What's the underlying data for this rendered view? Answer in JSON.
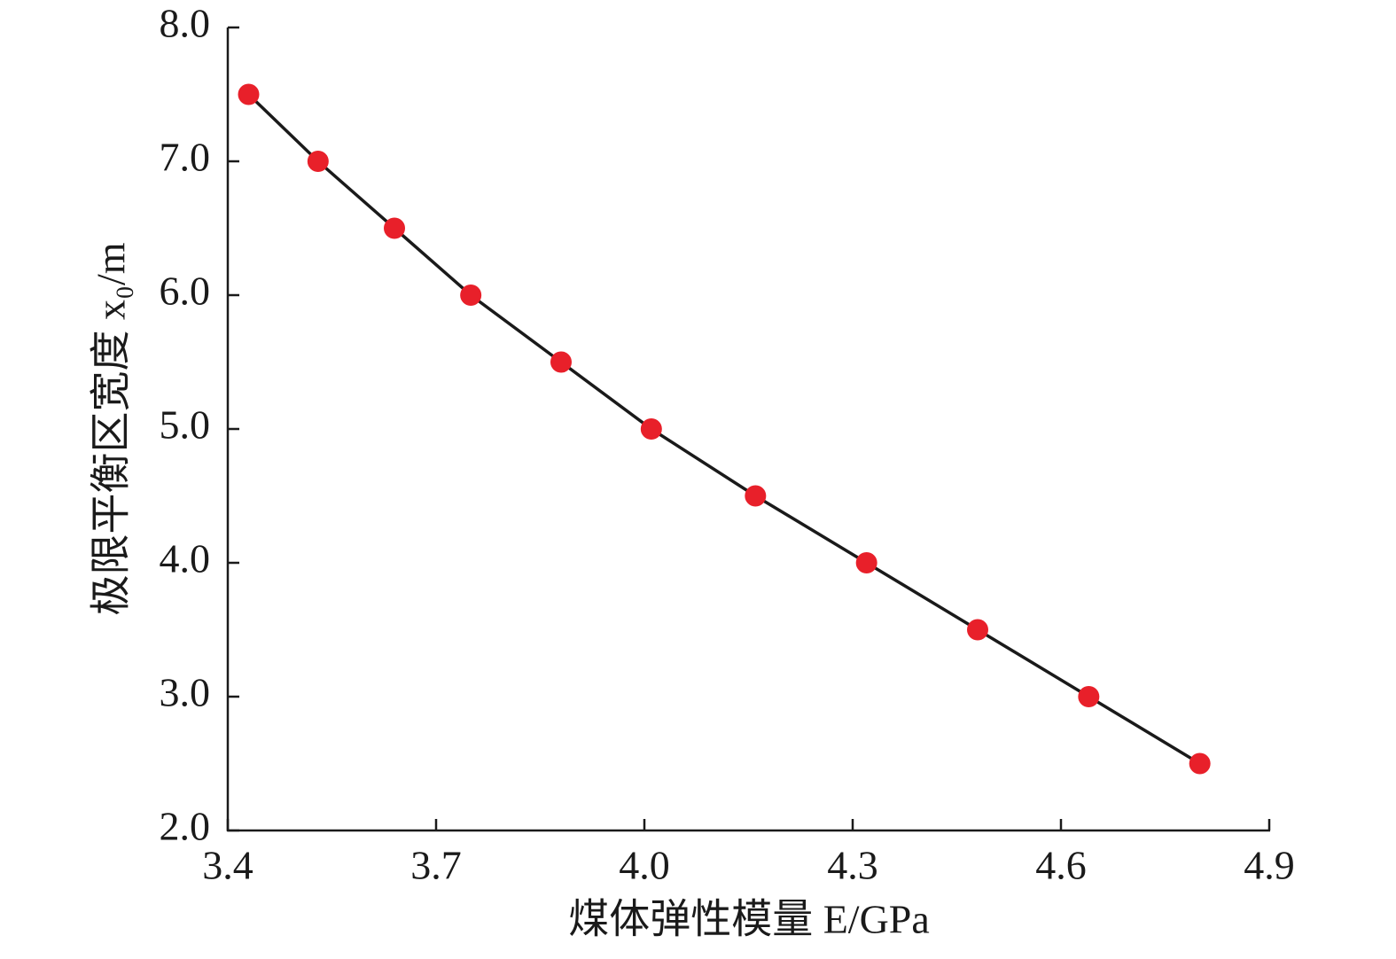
{
  "chart_data": {
    "type": "line",
    "x_label": "煤体弹性模量 E/GPa",
    "y_label": "极限平衡区宽度 x₀/m",
    "x": [
      3.43,
      3.53,
      3.64,
      3.75,
      3.88,
      4.01,
      4.16,
      4.32,
      4.48,
      4.64,
      4.8
    ],
    "series": [
      {
        "color": "#e8202a",
        "line_color": "#1a1a1a",
        "values": [
          7.5,
          7.0,
          6.5,
          6.0,
          5.5,
          5.0,
          4.5,
          4.0,
          3.5,
          3.0,
          2.5
        ]
      }
    ],
    "xlim": [
      3.4,
      4.9
    ],
    "xticks": [
      3.4,
      3.7,
      {
        "value": 4.0,
        "label": "4.0"
      },
      4.3,
      4.6,
      4.9
    ],
    "ylim": [
      2.0,
      8.0
    ],
    "yticks": [
      {
        "value": 2.0,
        "label": "2.0"
      },
      {
        "value": 3.0,
        "label": "3.0"
      },
      {
        "value": 4.0,
        "label": "4.0"
      },
      {
        "value": 5.0,
        "label": "5.0"
      },
      {
        "value": 6.0,
        "label": "6.0"
      },
      {
        "value": 7.0,
        "label": "7.0"
      },
      {
        "value": 8.0,
        "label": "8.0"
      }
    ]
  }
}
